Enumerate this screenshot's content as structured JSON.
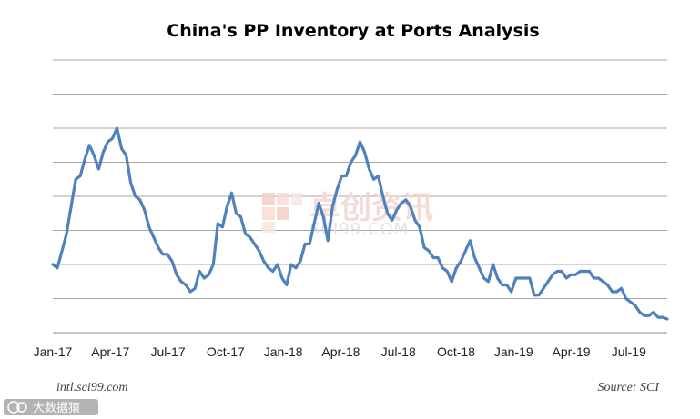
{
  "chart_data": {
    "type": "line",
    "title": "China's PP Inventory at Ports Analysis",
    "xlabel": "",
    "ylabel": "",
    "x_range_months": [
      "Jan-17",
      "Sep-19"
    ],
    "ylim": [
      0,
      8
    ],
    "grid": true,
    "legend": "none",
    "x_tick_labels": [
      "Jan-17",
      "Apr-17",
      "Jul-17",
      "Oct-17",
      "Jan-18",
      "Apr-18",
      "Jul-18",
      "Oct-18",
      "Jan-19",
      "Apr-19",
      "Jul-19"
    ],
    "line_color": "#4f81bd",
    "series": [
      {
        "values": [
          2.0,
          1.9,
          2.4,
          2.9,
          3.7,
          4.5,
          4.6,
          5.1,
          5.5,
          5.2,
          4.8,
          5.3,
          5.6,
          5.7,
          6.0,
          5.4,
          5.2,
          4.4,
          4.0,
          3.9,
          3.6,
          3.1,
          2.8,
          2.5,
          2.3,
          2.3,
          2.1,
          1.7,
          1.5,
          1.4,
          1.2,
          1.3,
          1.8,
          1.6,
          1.7,
          2.0,
          3.2,
          3.1,
          3.7,
          4.1,
          3.5,
          3.4,
          2.9,
          2.8,
          2.6,
          2.4,
          2.1,
          1.9,
          1.8,
          2.0,
          1.6,
          1.4,
          2.0,
          1.9,
          2.1,
          2.6,
          2.6,
          3.2,
          3.8,
          3.4,
          2.7,
          3.7,
          4.2,
          4.6,
          4.6,
          5.0,
          5.2,
          5.6,
          5.3,
          4.8,
          4.5,
          4.6,
          4.0,
          3.5,
          3.3,
          3.6,
          3.8,
          3.9,
          3.7,
          3.3,
          3.1,
          2.5,
          2.4,
          2.2,
          2.2,
          1.9,
          1.8,
          1.5,
          1.9,
          2.1,
          2.4,
          2.7,
          2.2,
          1.9,
          1.6,
          1.5,
          2.0,
          1.6,
          1.4,
          1.4,
          1.2,
          1.6,
          1.6,
          1.6,
          1.6,
          1.1,
          1.1,
          1.3,
          1.5,
          1.7,
          1.8,
          1.8,
          1.6,
          1.7,
          1.7,
          1.8,
          1.8,
          1.8,
          1.6,
          1.6,
          1.5,
          1.4,
          1.2,
          1.2,
          1.3,
          1.0,
          0.9,
          0.8,
          0.6,
          0.5,
          0.5,
          0.6,
          0.45,
          0.45,
          0.4
        ]
      }
    ]
  },
  "watermark": {
    "chinese_text": "卓创资讯",
    "site_text": "SCI99.COM"
  },
  "footer": {
    "site": "intl.sci99.com",
    "source": "Source: SCI"
  },
  "overlay_badge": {
    "text": "大数据猿"
  }
}
